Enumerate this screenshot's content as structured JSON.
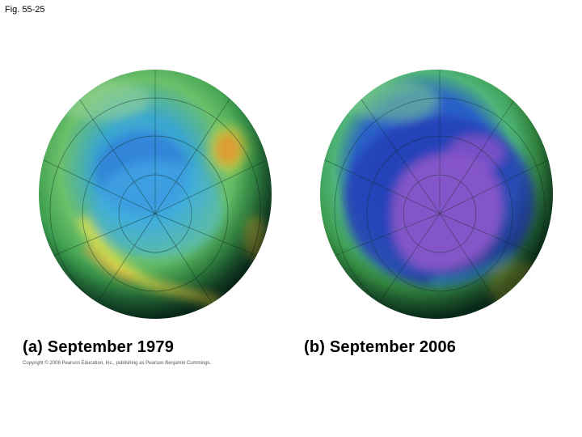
{
  "figure": {
    "label": "Fig. 55-25"
  },
  "panels": [
    {
      "caption": "(a) September 1979"
    },
    {
      "caption": "(b) September 2006"
    }
  ],
  "credit": "Copyright © 2008 Pearson Education, Inc., publishing as Pearson Benjamin Cummings.",
  "colors": {
    "ocean_green": "#2e9b4e",
    "high_ozone_yellow": "#e8d83a",
    "high_ozone_orange": "#e0641e",
    "mid_blue": "#2f6fd0",
    "hole_purple": "#8a55c8",
    "rim_dark": "#0e3a28"
  }
}
